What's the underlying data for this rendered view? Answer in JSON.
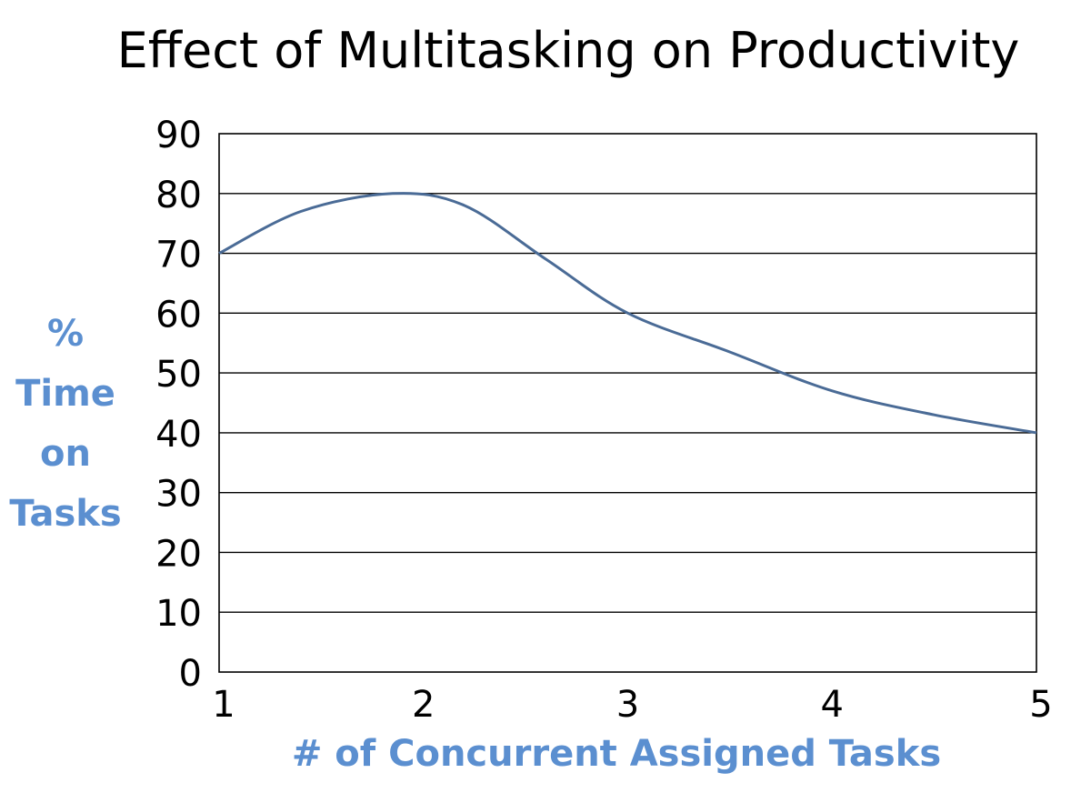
{
  "chart_data": {
    "type": "line",
    "title": "Effect of Multitasking on Productivity",
    "xlabel": "# of Concurrent  Assigned Tasks",
    "ylabel_lines": [
      "%",
      "Time",
      "on",
      "Tasks"
    ],
    "x_ticks": [
      "1",
      "2",
      "3",
      "4",
      "5"
    ],
    "y_ticks": [
      "0",
      "10",
      "20",
      "30",
      "40",
      "50",
      "60",
      "70",
      "80",
      "90"
    ],
    "xlim": [
      1,
      5
    ],
    "ylim": [
      0,
      90
    ],
    "grid": true,
    "label_color": "#5B8FD0",
    "series": [
      {
        "color": "#4A6B96",
        "x": [
          1,
          1.4,
          1.85,
          2.2,
          2.6,
          3,
          3.5,
          4,
          4.5,
          5
        ],
        "y": [
          70,
          77,
          80,
          78,
          69,
          60,
          53.5,
          47,
          43,
          40
        ]
      }
    ]
  }
}
